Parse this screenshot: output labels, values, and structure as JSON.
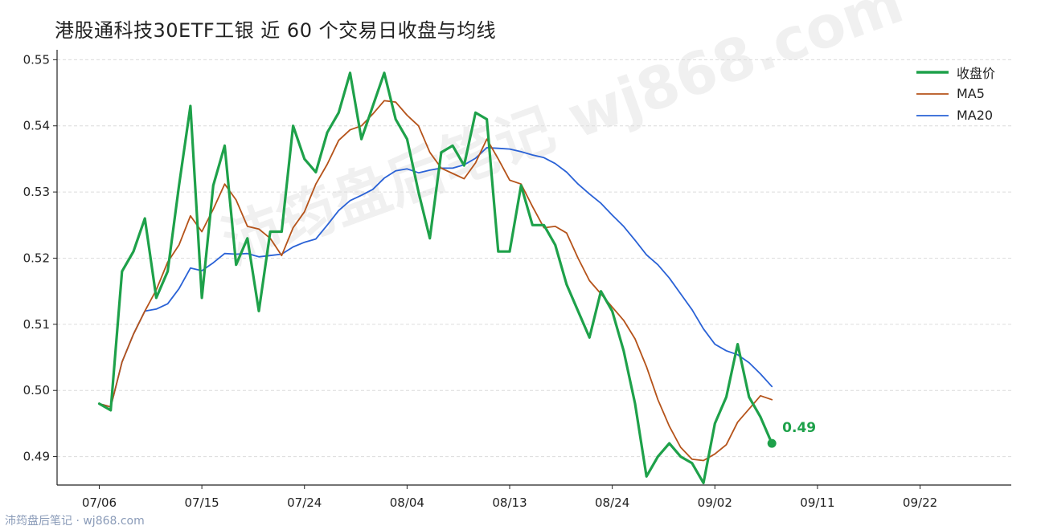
{
  "page": {
    "title": "港股通科技30ETF工银 近 60 个交易日收盘与均线",
    "footer": "沛筠盘后笔记 · wj868.com",
    "watermark": "沛筠盘后笔记 wj868.com"
  },
  "colors": {
    "close": "#1ea14a",
    "ma5": "#b5531a",
    "ma20": "#2a62d6"
  },
  "chart_data": {
    "type": "line",
    "title": "港股通科技30ETF工银 近 60 个交易日收盘与均线",
    "xlabel": "",
    "ylabel": "",
    "ylim": [
      0.4857,
      0.5515
    ],
    "yticks": [
      0.49,
      0.5,
      0.51,
      0.52,
      0.53,
      0.54,
      0.55
    ],
    "ytick_labels": [
      "0.49",
      "0.50",
      "0.51",
      "0.52",
      "0.53",
      "0.54",
      "0.55"
    ],
    "xticks": [
      0,
      9,
      18,
      27,
      36,
      45,
      54,
      63,
      72
    ],
    "xtick_labels": [
      "07/06",
      "07/15",
      "07/24",
      "08/04",
      "08/13",
      "08/24",
      "09/02",
      "09/11",
      "09/22"
    ],
    "xlim": [
      -3.7,
      80
    ],
    "grid": "horizontal dashed",
    "legend_position": "top-right",
    "last_value_label": "0.49",
    "series": [
      {
        "name": "收盘价",
        "x": [
          0,
          1,
          2,
          3,
          4,
          5,
          6,
          7,
          8,
          9,
          10,
          11,
          12,
          13,
          14,
          15,
          16,
          17,
          18,
          19,
          20,
          21,
          22,
          23,
          24,
          25,
          26,
          27,
          28,
          29,
          30,
          31,
          32,
          33,
          34,
          35,
          36,
          37,
          38,
          39,
          40,
          41,
          42,
          43,
          44,
          45,
          46,
          47,
          48,
          49,
          50,
          51,
          52,
          53,
          54,
          55,
          56,
          57,
          58,
          59
        ],
        "values": [
          0.498,
          0.497,
          0.518,
          0.521,
          0.526,
          0.514,
          0.518,
          0.531,
          0.543,
          0.514,
          0.531,
          0.537,
          0.519,
          0.523,
          0.512,
          0.524,
          0.524,
          0.54,
          0.535,
          0.533,
          0.539,
          0.542,
          0.548,
          0.538,
          0.543,
          0.548,
          0.541,
          0.538,
          0.53,
          0.523,
          0.536,
          0.537,
          0.534,
          0.542,
          0.541,
          0.521,
          0.521,
          0.531,
          0.525,
          0.525,
          0.522,
          0.516,
          0.512,
          0.508,
          0.515,
          0.512,
          0.506,
          0.498,
          0.487,
          0.49,
          0.492,
          0.49,
          0.489,
          0.486,
          0.495,
          0.499,
          0.507,
          0.499,
          0.496,
          0.492
        ]
      },
      {
        "name": "MA5",
        "x": [
          0,
          1,
          2,
          3,
          4,
          5,
          6,
          7,
          8,
          9,
          10,
          11,
          12,
          13,
          14,
          15,
          16,
          17,
          18,
          19,
          20,
          21,
          22,
          23,
          24,
          25,
          26,
          27,
          28,
          29,
          30,
          31,
          32,
          33,
          34,
          35,
          36,
          37,
          38,
          39,
          40,
          41,
          42,
          43,
          44,
          45,
          46,
          47,
          48,
          49,
          50,
          51,
          52,
          53,
          54,
          55,
          56,
          57,
          58,
          59
        ],
        "values": [
          0.498,
          0.4975,
          0.5043,
          0.5085,
          0.512,
          0.5152,
          0.5194,
          0.522,
          0.5264,
          0.524,
          0.5274,
          0.5312,
          0.5288,
          0.5248,
          0.5244,
          0.523,
          0.5204,
          0.5246,
          0.527,
          0.5312,
          0.5342,
          0.5378,
          0.5394,
          0.54,
          0.5418,
          0.5438,
          0.5436,
          0.5416,
          0.54,
          0.536,
          0.5336,
          0.5328,
          0.532,
          0.5344,
          0.538,
          0.535,
          0.5318,
          0.5312,
          0.5278,
          0.5246,
          0.5248,
          0.5238,
          0.52,
          0.5166,
          0.5146,
          0.5126,
          0.5106,
          0.5078,
          0.5036,
          0.4986,
          0.4946,
          0.4914,
          0.4896,
          0.4894,
          0.4904,
          0.4918,
          0.4952,
          0.4972,
          0.4992,
          0.4986
        ]
      },
      {
        "name": "MA20",
        "x": [
          0,
          1,
          2,
          3,
          4,
          5,
          6,
          7,
          8,
          9,
          10,
          11,
          12,
          13,
          14,
          15,
          16,
          17,
          18,
          19,
          20,
          21,
          22,
          23,
          24,
          25,
          26,
          27,
          28,
          29,
          30,
          31,
          32,
          33,
          34,
          35,
          36,
          37,
          38,
          39,
          40,
          41,
          42,
          43,
          44,
          45,
          46,
          47,
          48,
          49,
          50,
          51,
          52,
          53,
          54,
          55,
          56,
          57,
          58,
          59
        ],
        "values": [
          0.498,
          0.4975,
          0.5043,
          0.5085,
          0.512,
          0.5123,
          0.5131,
          0.5154,
          0.5185,
          0.5181,
          0.5193,
          0.5207,
          0.5206,
          0.5207,
          0.5202,
          0.5204,
          0.5206,
          0.5217,
          0.5224,
          0.5229,
          0.525,
          0.5272,
          0.5287,
          0.5295,
          0.5304,
          0.5321,
          0.5332,
          0.5335,
          0.5329,
          0.5333,
          0.5336,
          0.5336,
          0.5341,
          0.5351,
          0.5367,
          0.5366,
          0.5365,
          0.5361,
          0.5356,
          0.5352,
          0.5343,
          0.533,
          0.5312,
          0.5297,
          0.5283,
          0.5265,
          0.5248,
          0.5227,
          0.5205,
          0.519,
          0.517,
          0.5146,
          0.5122,
          0.5093,
          0.507,
          0.506,
          0.5054,
          0.5042,
          0.5025,
          0.5006
        ]
      }
    ]
  }
}
